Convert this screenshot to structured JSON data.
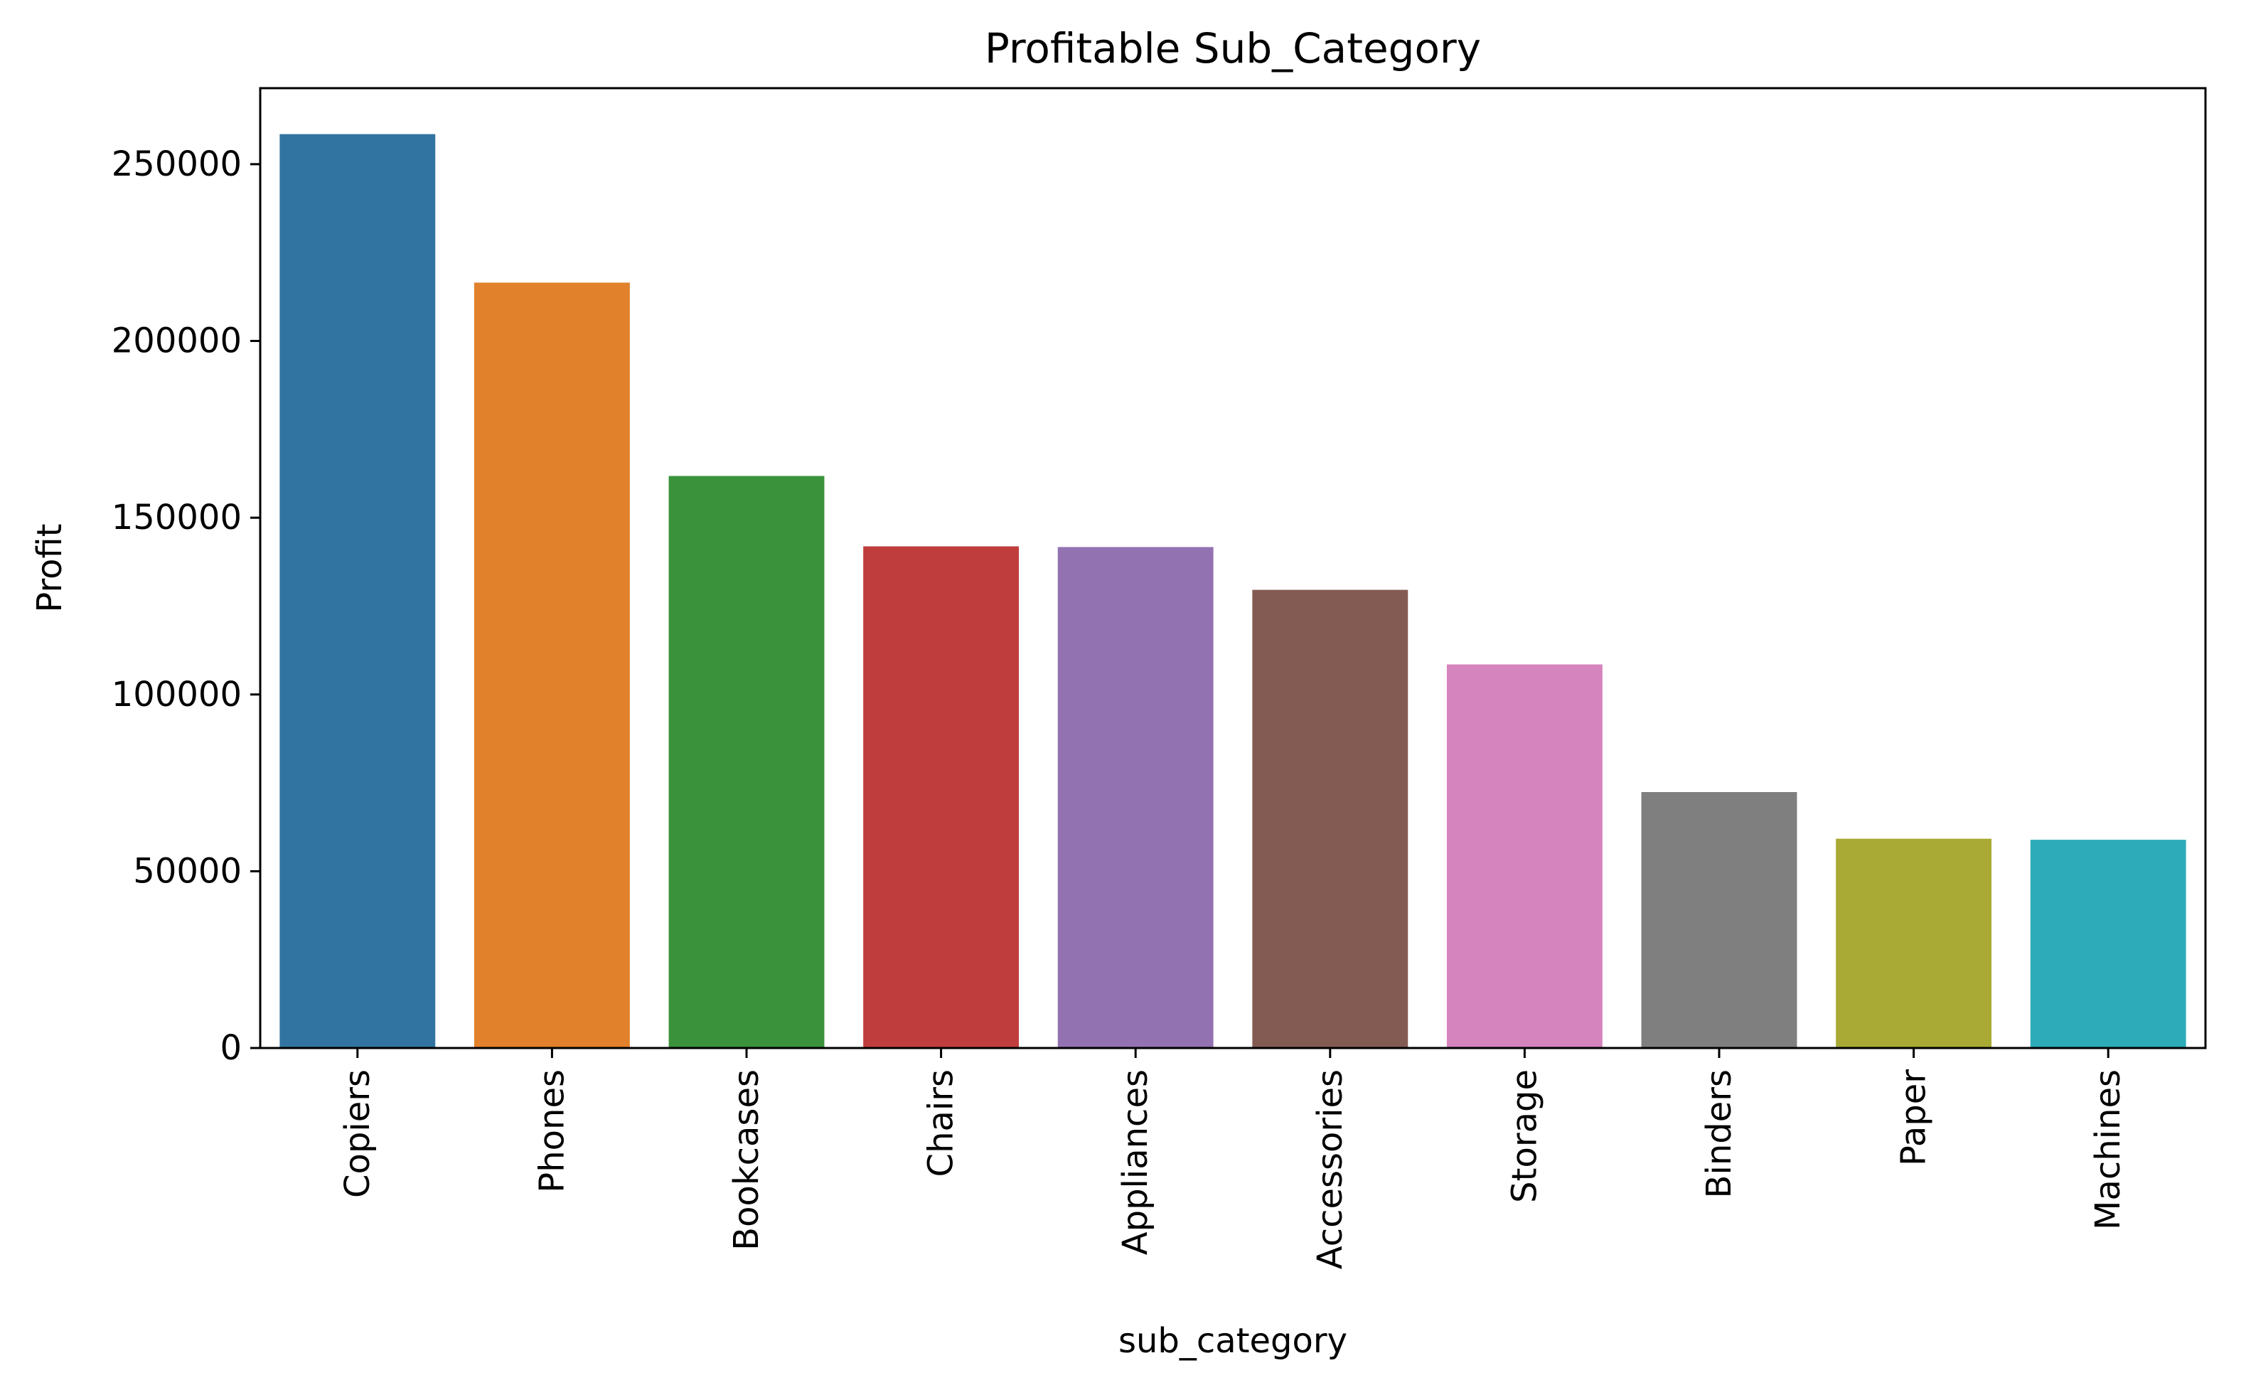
{
  "chart_data": {
    "type": "bar",
    "title": "Profitable Sub_Category",
    "xlabel": "sub_category",
    "ylabel": "Profit",
    "categories": [
      "Copiers",
      "Phones",
      "Bookcases",
      "Chairs",
      "Appliances",
      "Accessories",
      "Storage",
      "Binders",
      "Paper",
      "Machines"
    ],
    "values": [
      258500,
      216500,
      161800,
      141900,
      141700,
      129600,
      108500,
      72400,
      59200,
      58900
    ],
    "colors": [
      "#3274a1",
      "#e1812c",
      "#3a923a",
      "#c03d3e",
      "#9372b2",
      "#845b53",
      "#d684bd",
      "#7f7f7f",
      "#a9aa35",
      "#2eabb8"
    ],
    "ylim": [
      0,
      271500
    ],
    "yticks": [
      0,
      50000,
      100000,
      150000,
      200000,
      250000
    ],
    "ytick_labels": [
      "0",
      "50000",
      "100000",
      "150000",
      "200000",
      "250000"
    ],
    "grid": false,
    "legend": "none"
  }
}
